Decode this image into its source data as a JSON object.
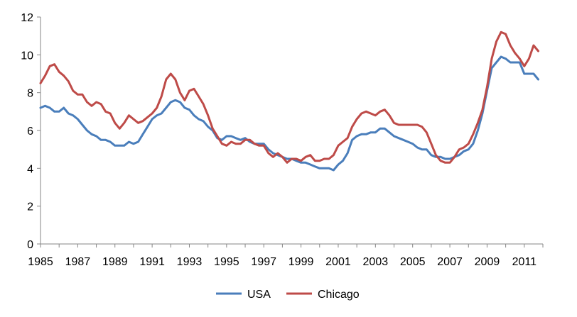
{
  "chart_data": {
    "type": "line",
    "title": "",
    "xlabel": "",
    "ylabel": "",
    "xlim": [
      1985,
      2012
    ],
    "ylim": [
      0,
      12
    ],
    "y_ticks": [
      0,
      2,
      4,
      6,
      8,
      10,
      12
    ],
    "x_ticks": [
      1985,
      1987,
      1989,
      1991,
      1993,
      1995,
      1997,
      1999,
      2001,
      2003,
      2005,
      2007,
      2009,
      2011
    ],
    "x_tick_labels": [
      "1985",
      "1987",
      "1989",
      "1991",
      "1993",
      "1995",
      "1997",
      "1999",
      "2001",
      "2003",
      "2005",
      "2007",
      "2009",
      "2011"
    ],
    "y_tick_labels": [
      "0",
      "2",
      "4",
      "6",
      "8",
      "10",
      "12"
    ],
    "grid": false,
    "legend_position": "bottom",
    "series": [
      {
        "name": "USA",
        "color": "#4a7ebb",
        "x": [
          1985.0,
          1985.25,
          1985.5,
          1985.75,
          1986.0,
          1986.25,
          1986.5,
          1986.75,
          1987.0,
          1987.25,
          1987.5,
          1987.75,
          1988.0,
          1988.25,
          1988.5,
          1988.75,
          1989.0,
          1989.25,
          1989.5,
          1989.75,
          1990.0,
          1990.25,
          1990.5,
          1990.75,
          1991.0,
          1991.25,
          1991.5,
          1991.75,
          1992.0,
          1992.25,
          1992.5,
          1992.75,
          1993.0,
          1993.25,
          1993.5,
          1993.75,
          1994.0,
          1994.25,
          1994.5,
          1994.75,
          1995.0,
          1995.25,
          1995.5,
          1995.75,
          1996.0,
          1996.25,
          1996.5,
          1996.75,
          1997.0,
          1997.25,
          1997.5,
          1997.75,
          1998.0,
          1998.25,
          1998.5,
          1998.75,
          1999.0,
          1999.25,
          1999.5,
          1999.75,
          2000.0,
          2000.25,
          2000.5,
          2000.75,
          2001.0,
          2001.25,
          2001.5,
          2001.75,
          2002.0,
          2002.25,
          2002.5,
          2002.75,
          2003.0,
          2003.25,
          2003.5,
          2003.75,
          2004.0,
          2004.25,
          2004.5,
          2004.75,
          2005.0,
          2005.25,
          2005.5,
          2005.75,
          2006.0,
          2006.25,
          2006.5,
          2006.75,
          2007.0,
          2007.25,
          2007.5,
          2007.75,
          2008.0,
          2008.25,
          2008.5,
          2008.75,
          2009.0,
          2009.25,
          2009.5,
          2009.75,
          2010.0,
          2010.25,
          2010.5,
          2010.75,
          2011.0,
          2011.25,
          2011.5,
          2011.75
        ],
        "values": [
          7.2,
          7.3,
          7.2,
          7.0,
          7.0,
          7.2,
          6.9,
          6.8,
          6.6,
          6.3,
          6.0,
          5.8,
          5.7,
          5.5,
          5.5,
          5.4,
          5.2,
          5.2,
          5.2,
          5.4,
          5.3,
          5.4,
          5.8,
          6.2,
          6.6,
          6.8,
          6.9,
          7.2,
          7.5,
          7.6,
          7.5,
          7.2,
          7.1,
          6.8,
          6.6,
          6.5,
          6.2,
          6.0,
          5.6,
          5.5,
          5.7,
          5.7,
          5.6,
          5.5,
          5.6,
          5.4,
          5.3,
          5.3,
          5.3,
          5.0,
          4.8,
          4.7,
          4.6,
          4.5,
          4.5,
          4.4,
          4.3,
          4.3,
          4.2,
          4.1,
          4.0,
          4.0,
          4.0,
          3.9,
          4.2,
          4.4,
          4.8,
          5.5,
          5.7,
          5.8,
          5.8,
          5.9,
          5.9,
          6.1,
          6.1,
          5.9,
          5.7,
          5.6,
          5.5,
          5.4,
          5.3,
          5.1,
          5.0,
          5.0,
          4.7,
          4.6,
          4.6,
          4.5,
          4.5,
          4.6,
          4.7,
          4.9,
          5.0,
          5.3,
          6.0,
          6.9,
          8.1,
          9.3,
          9.6,
          9.9,
          9.8,
          9.6,
          9.6,
          9.6,
          9.0,
          9.0,
          9.0,
          8.7
        ]
      },
      {
        "name": "Chicago",
        "color": "#be4b48",
        "x": [
          1985.0,
          1985.25,
          1985.5,
          1985.75,
          1986.0,
          1986.25,
          1986.5,
          1986.75,
          1987.0,
          1987.25,
          1987.5,
          1987.75,
          1988.0,
          1988.25,
          1988.5,
          1988.75,
          1989.0,
          1989.25,
          1989.5,
          1989.75,
          1990.0,
          1990.25,
          1990.5,
          1990.75,
          1991.0,
          1991.25,
          1991.5,
          1991.75,
          1992.0,
          1992.25,
          1992.5,
          1992.75,
          1993.0,
          1993.25,
          1993.5,
          1993.75,
          1994.0,
          1994.25,
          1994.5,
          1994.75,
          1995.0,
          1995.25,
          1995.5,
          1995.75,
          1996.0,
          1996.25,
          1996.5,
          1996.75,
          1997.0,
          1997.25,
          1997.5,
          1997.75,
          1998.0,
          1998.25,
          1998.5,
          1998.75,
          1999.0,
          1999.25,
          1999.5,
          1999.75,
          2000.0,
          2000.25,
          2000.5,
          2000.75,
          2001.0,
          2001.25,
          2001.5,
          2001.75,
          2002.0,
          2002.25,
          2002.5,
          2002.75,
          2003.0,
          2003.25,
          2003.5,
          2003.75,
          2004.0,
          2004.25,
          2004.5,
          2004.75,
          2005.0,
          2005.25,
          2005.5,
          2005.75,
          2006.0,
          2006.25,
          2006.5,
          2006.75,
          2007.0,
          2007.25,
          2007.5,
          2007.75,
          2008.0,
          2008.25,
          2008.5,
          2008.75,
          2009.0,
          2009.25,
          2009.5,
          2009.75,
          2010.0,
          2010.25,
          2010.5,
          2010.75,
          2011.0,
          2011.25,
          2011.5,
          2011.75
        ],
        "values": [
          8.5,
          8.9,
          9.4,
          9.5,
          9.1,
          8.9,
          8.6,
          8.1,
          7.9,
          7.9,
          7.5,
          7.3,
          7.5,
          7.4,
          7.0,
          6.9,
          6.4,
          6.1,
          6.4,
          6.8,
          6.6,
          6.4,
          6.5,
          6.7,
          6.9,
          7.2,
          7.8,
          8.7,
          9.0,
          8.7,
          8.0,
          7.6,
          8.1,
          8.2,
          7.8,
          7.4,
          6.8,
          6.1,
          5.7,
          5.3,
          5.2,
          5.4,
          5.3,
          5.3,
          5.5,
          5.5,
          5.3,
          5.2,
          5.2,
          4.8,
          4.6,
          4.8,
          4.6,
          4.3,
          4.5,
          4.5,
          4.4,
          4.6,
          4.7,
          4.4,
          4.4,
          4.5,
          4.5,
          4.7,
          5.2,
          5.4,
          5.6,
          6.2,
          6.6,
          6.9,
          7.0,
          6.9,
          6.8,
          7.0,
          7.1,
          6.8,
          6.4,
          6.3,
          6.3,
          6.3,
          6.3,
          6.3,
          6.2,
          5.9,
          5.3,
          4.7,
          4.4,
          4.3,
          4.3,
          4.6,
          5.0,
          5.1,
          5.3,
          5.8,
          6.4,
          7.1,
          8.3,
          9.8,
          10.7,
          11.2,
          11.1,
          10.5,
          10.1,
          9.8,
          9.4,
          9.8,
          10.5,
          10.2
        ]
      }
    ]
  }
}
